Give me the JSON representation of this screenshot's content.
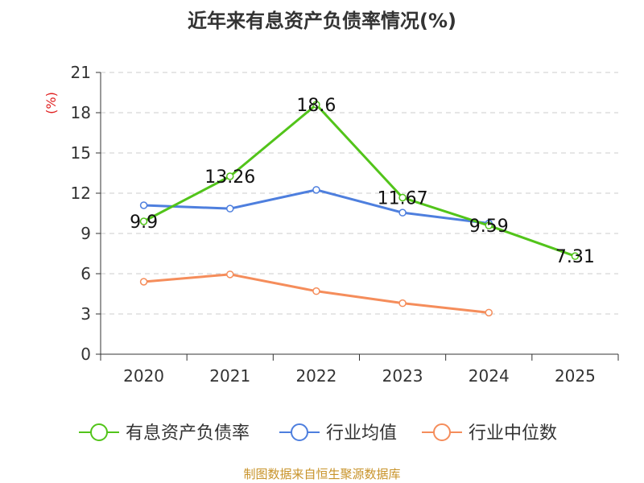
{
  "title": "近年来有息资产负债率情况(%)",
  "source_note": "制图数据来自恒生聚源数据库",
  "colors": {
    "debt_ratio": "#52c41a",
    "industry_avg": "#4e7fde",
    "industry_median": "#f58d5b",
    "y_unit": "#e02020",
    "grid": "#cccccc",
    "axis": "#333333"
  },
  "chart_data": {
    "type": "line",
    "title": "近年来有息资产负债率情况(%)",
    "y_unit": "(%)",
    "ylim": [
      0,
      21
    ],
    "y_ticks": [
      0,
      3,
      6,
      9,
      12,
      15,
      18,
      21
    ],
    "categories": [
      "2020",
      "2021",
      "2022",
      "2023",
      "2024",
      "2025"
    ],
    "grid": true,
    "legend_position": "bottom",
    "series": [
      {
        "name": "有息资产负债率",
        "color_key": "debt_ratio",
        "show_labels": true,
        "values": [
          9.9,
          13.26,
          18.6,
          11.67,
          9.59,
          7.31
        ]
      },
      {
        "name": "行业均值",
        "color_key": "industry_avg",
        "show_labels": false,
        "values": [
          11.1,
          10.85,
          12.25,
          10.55,
          9.75,
          null
        ]
      },
      {
        "name": "行业中位数",
        "color_key": "industry_median",
        "show_labels": false,
        "values": [
          5.4,
          5.95,
          4.7,
          3.8,
          3.1,
          null
        ]
      }
    ]
  }
}
